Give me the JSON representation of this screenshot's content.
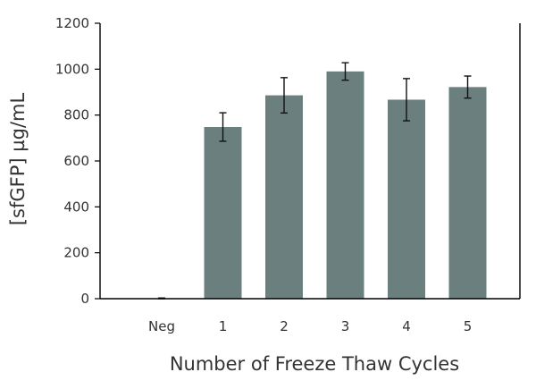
{
  "chart_data": {
    "type": "bar",
    "title": "",
    "xlabel": "Number of Freeze Thaw Cycles",
    "ylabel": "[sfGFP] µg/mL",
    "categories": [
      "Neg",
      "1",
      "2",
      "3",
      "4",
      "5"
    ],
    "values": [
      0,
      748,
      886,
      990,
      867,
      922
    ],
    "error": [
      3,
      62,
      77,
      38,
      92,
      48
    ],
    "ylim": [
      0,
      1200
    ],
    "yticks": [
      0,
      200,
      400,
      600,
      800,
      1000,
      1200
    ],
    "ytick_labels": [
      "0",
      "200",
      "400",
      "600",
      "800",
      "1000",
      "1200"
    ],
    "grid": false,
    "colors": {
      "bar": "#6b7f7f",
      "axis": "#000000",
      "text": "#333333"
    }
  }
}
